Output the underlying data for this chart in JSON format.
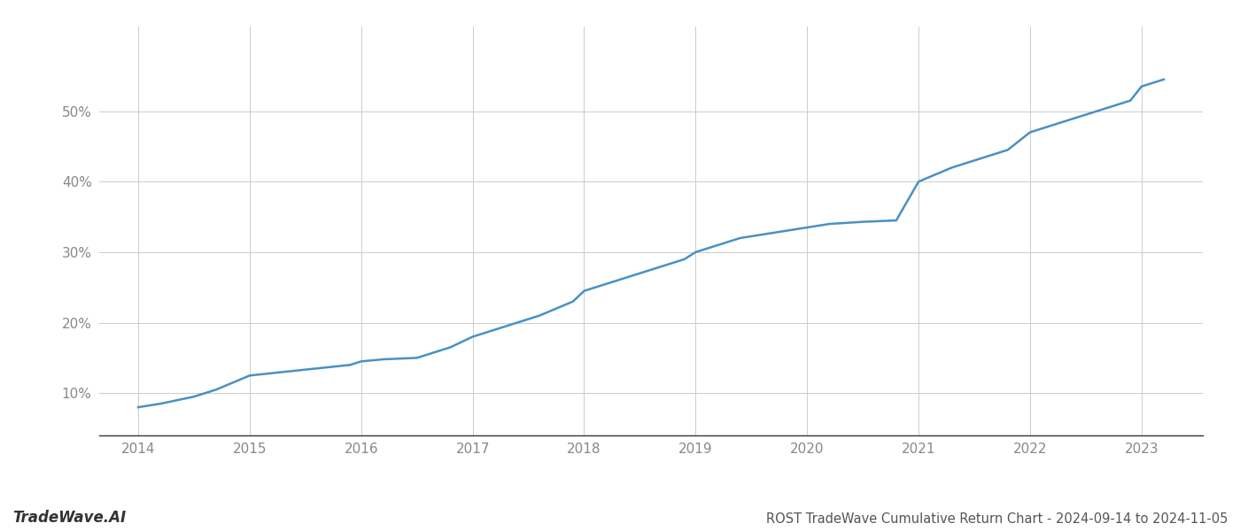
{
  "title": "ROST TradeWave Cumulative Return Chart - 2024-09-14 to 2024-11-05",
  "watermark": "TradeWave.AI",
  "line_color": "#4a90c4",
  "line_width": 1.8,
  "background_color": "#ffffff",
  "grid_color": "#cccccc",
  "x_years": [
    2014.0,
    2014.2,
    2014.5,
    2014.7,
    2015.0,
    2015.3,
    2015.6,
    2015.9,
    2016.0,
    2016.2,
    2016.5,
    2016.8,
    2017.0,
    2017.3,
    2017.6,
    2017.9,
    2018.0,
    2018.3,
    2018.6,
    2018.9,
    2019.0,
    2019.2,
    2019.4,
    2019.6,
    2019.8,
    2020.0,
    2020.2,
    2020.5,
    2020.8,
    2021.0,
    2021.3,
    2021.5,
    2021.8,
    2022.0,
    2022.3,
    2022.6,
    2022.9,
    2023.0,
    2023.2
  ],
  "y_values": [
    8.0,
    8.5,
    9.5,
    10.5,
    12.5,
    13.0,
    13.5,
    14.0,
    14.5,
    14.8,
    15.0,
    16.5,
    18.0,
    19.5,
    21.0,
    23.0,
    24.5,
    26.0,
    27.5,
    29.0,
    30.0,
    31.0,
    32.0,
    32.5,
    33.0,
    33.5,
    34.0,
    34.3,
    34.5,
    40.0,
    42.0,
    43.0,
    44.5,
    47.0,
    48.5,
    50.0,
    51.5,
    53.5,
    54.5
  ],
  "ylim": [
    4,
    62
  ],
  "yticks": [
    10,
    20,
    30,
    40,
    50
  ],
  "xlim": [
    2013.65,
    2023.55
  ],
  "xticks": [
    2014,
    2015,
    2016,
    2017,
    2018,
    2019,
    2020,
    2021,
    2022,
    2023
  ],
  "title_fontsize": 10.5,
  "tick_fontsize": 11,
  "watermark_fontsize": 12
}
